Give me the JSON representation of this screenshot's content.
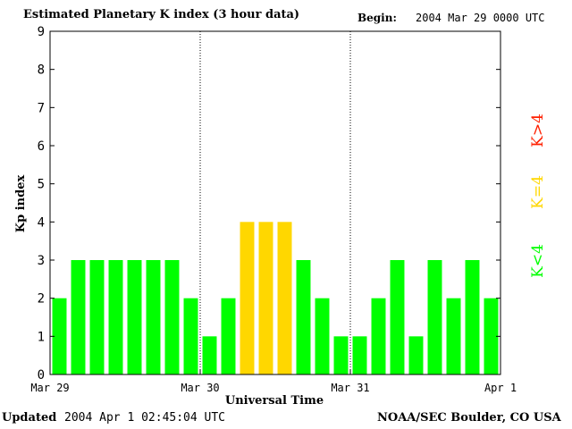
{
  "header": {
    "title": "Estimated Planetary K index (3 hour data)",
    "begin_label": "Begin:",
    "begin_value": "2004 Mar 29 0000 UTC"
  },
  "footer": {
    "updated_label": "Updated",
    "updated_value": "2004 Apr  1 02:45:04 UTC",
    "credit": "NOAA/SEC Boulder, CO USA"
  },
  "colors": {
    "low": "#00ff00",
    "mid": "#ffd700",
    "high": "#ff2000",
    "axis": "#000000"
  },
  "chart_data": {
    "type": "bar",
    "title": "Estimated Planetary K index (3 hour data)",
    "xlabel": "Universal Time",
    "ylabel": "Kp index",
    "ylim": [
      0,
      9
    ],
    "yticks": [
      "0",
      "1",
      "2",
      "3",
      "4",
      "5",
      "6",
      "7",
      "8",
      "9"
    ],
    "xticks": [
      "Mar 29",
      "Mar 30",
      "Mar 31",
      "Apr 1"
    ],
    "day_dividers": true,
    "legend": [
      "K<4",
      "K=4",
      "K>4"
    ],
    "legend_placement": "right",
    "values": [
      2,
      3,
      3,
      3,
      3,
      3,
      3,
      2,
      1,
      2,
      4,
      4,
      4,
      3,
      2,
      1,
      1,
      2,
      3,
      1,
      3,
      2,
      3,
      2
    ]
  }
}
